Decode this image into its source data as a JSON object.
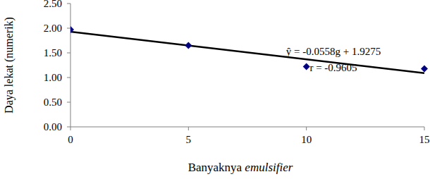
{
  "chart_data": {
    "type": "scatter",
    "x_label": "Banyaknya emulsifier",
    "y_label": "Daya lekat (numerik)",
    "annotations": [
      "ŷ = -0.0558g + 1.9275",
      "r = -0.9605"
    ],
    "series": [
      {
        "type": "scatter",
        "marker": "diamond",
        "color": "#000080",
        "x": [
          0,
          5,
          10,
          15
        ],
        "values": [
          1.97,
          1.65,
          1.22,
          1.18
        ]
      },
      {
        "type": "line",
        "line_style": "solid",
        "color": "#000000",
        "x": [
          0,
          15
        ],
        "values": [
          1.9275,
          1.0905
        ]
      }
    ],
    "xlim": [
      0,
      15
    ],
    "xticks": [
      0,
      5,
      10,
      15
    ],
    "ylim": [
      0,
      2.5
    ],
    "yticks": [
      {
        "value": 0,
        "label": "0.00"
      },
      {
        "value": 0.5,
        "label": "0.50"
      },
      {
        "value": 1,
        "label": "1.00"
      },
      {
        "value": 1.5,
        "label": "1.50"
      },
      {
        "value": 2,
        "label": "2.00"
      },
      {
        "value": 2.5,
        "label": "2.50"
      }
    ],
    "grid": false
  }
}
